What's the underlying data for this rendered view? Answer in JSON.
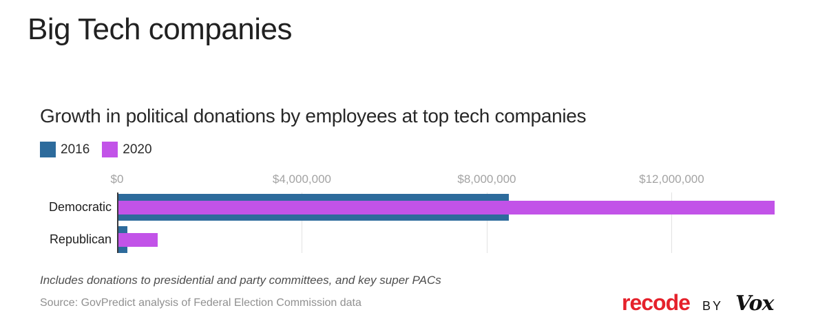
{
  "page": {
    "title": "Big Tech companies"
  },
  "chart_data": {
    "type": "bar",
    "orientation": "horizontal",
    "title": "Growth in political donations by employees at top tech companies",
    "categories": [
      "Democratic",
      "Republican"
    ],
    "series": [
      {
        "name": "2016",
        "color": "#2d6b9c",
        "values": [
          8450000,
          200000
        ]
      },
      {
        "name": "2020",
        "color": "#c253e8",
        "values": [
          14200000,
          850000
        ]
      }
    ],
    "x_ticks": [
      {
        "value": 0,
        "label": "$0"
      },
      {
        "value": 4000000,
        "label": "$4,000,000"
      },
      {
        "value": 8000000,
        "label": "$8,000,000"
      },
      {
        "value": 12000000,
        "label": "$12,000,000"
      }
    ],
    "xlim": [
      0,
      14750000
    ],
    "grid": true,
    "legend_position": "top-left",
    "note": "Includes donations to presidential and party committees, and key super PACs",
    "source": "Source: GovPredict analysis of Federal Election Commission data"
  },
  "footer": {
    "brand": "recode",
    "by": "BY",
    "vox": "Vox"
  }
}
